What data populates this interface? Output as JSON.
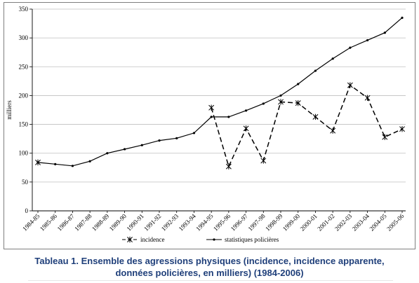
{
  "chart_data": {
    "type": "line",
    "title": "",
    "xlabel": "",
    "ylabel": "milliers",
    "ylim": [
      0,
      350
    ],
    "yticks": [
      0,
      50,
      100,
      150,
      200,
      250,
      300,
      350
    ],
    "grid": "horizontal",
    "legend_position": "bottom",
    "categories": [
      "1984-85",
      "1985-86",
      "1986-87",
      "1987-88",
      "1988-89",
      "1989-90",
      "1990-91",
      "1991-92",
      "1992-93",
      "1993-94",
      "1994-95",
      "1995-96",
      "1996-97",
      "1997-98",
      "1998-99",
      "1999-00",
      "2000-01",
      "2001-02",
      "2002-03",
      "2003-04",
      "2004-05",
      "2005-06"
    ],
    "series": [
      {
        "name": "incidence",
        "color": "#000000",
        "style": "dashed",
        "marker": "star",
        "values": [
          84,
          null,
          null,
          null,
          null,
          null,
          null,
          null,
          null,
          null,
          179,
          77,
          143,
          87,
          189,
          187,
          163,
          139,
          218,
          196,
          128,
          142
        ]
      },
      {
        "name": "statistiques policières",
        "color": "#000000",
        "style": "solid",
        "marker": "dot",
        "values": [
          84,
          81,
          78,
          86,
          100,
          107,
          114,
          122,
          126,
          135,
          163,
          163,
          174,
          186,
          200,
          220,
          243,
          264,
          283,
          296,
          309,
          335
        ]
      }
    ]
  },
  "caption": {
    "line1": "Tableau 1. Ensemble des agressions physiques (incidence, incidence apparente,",
    "line2": "données policières, en milliers) (1984-2006)"
  }
}
